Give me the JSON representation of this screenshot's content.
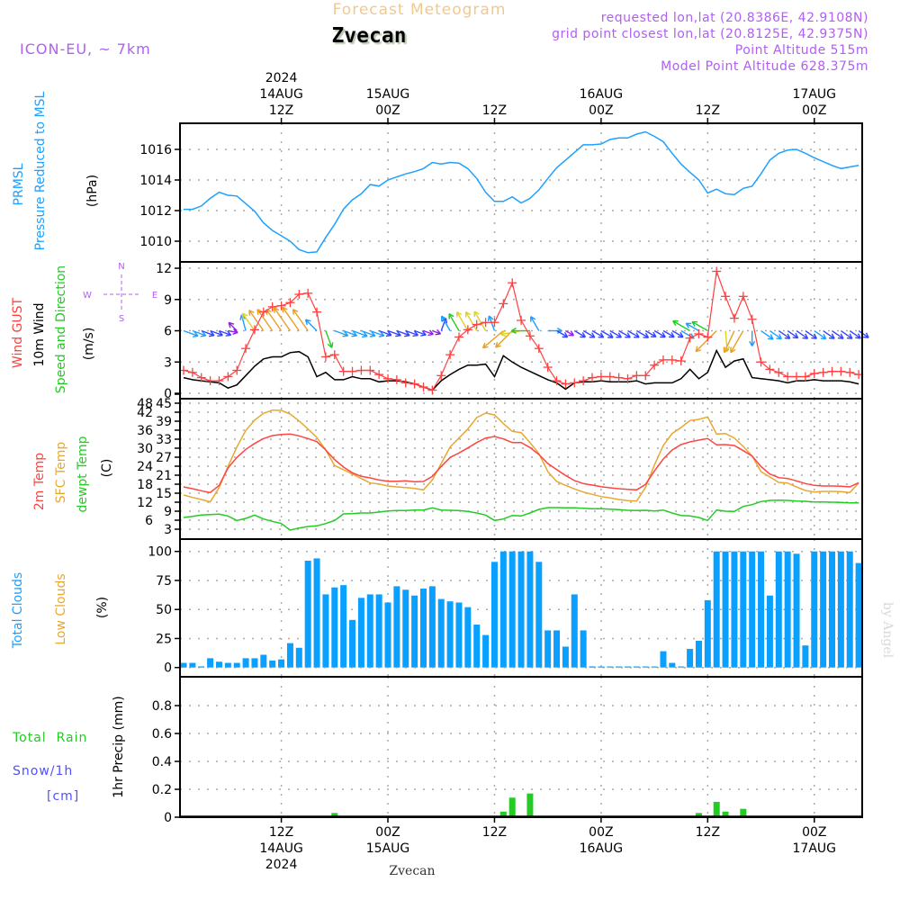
{
  "header": {
    "title": "Forecast Meteogram",
    "location": "Zvecan",
    "model": "ICON-EU, ~ 7km",
    "requested": "requested lon,lat (20.8386E, 42.9108N)",
    "grid_point": "grid point closest lon,lat (20.8125E, 42.9375N)",
    "point_altitude": "Point Altitude 515m",
    "model_altitude": "Model Point Altitude 628.375m",
    "footer_location": "Zvecan",
    "watermark": "by Angel"
  },
  "labels": {
    "prmsl": "PRMSL",
    "pressure": "Pressure Reduced to MSL",
    "hpa": "(hPa)",
    "wind_gust": "Wind GUST",
    "wind_10m": "10m Wind",
    "speed_dir": "Speed and Direction",
    "ms": "(m/s)",
    "compass_n": "N",
    "compass_s": "S",
    "compass_w": "W",
    "compass_e": "E",
    "t2m": "2m Temp",
    "sfc": "SFC Temp",
    "dewpt": "dewpt Temp",
    "c": "(C)",
    "total_clouds": "Total Clouds",
    "low_clouds": "Low Clouds",
    "pct": "(%)",
    "precip": "1hr Precip (mm)",
    "total_rain": "Total  Rain",
    "snow": "Snow/1h",
    "cm": "[cm]"
  },
  "colors": {
    "pressure": "#1ea0ff",
    "gust": "#ff4040",
    "wind10m": "#000000",
    "t2m": "#ff4444",
    "sfc": "#e8a830",
    "dewpt": "#22cc22",
    "clouds": "#0aa0ff",
    "low_clouds": "#e8a830",
    "precip": "#22cc22",
    "header_purple": "#b060f0",
    "title": "#f0c890"
  },
  "chart_data": {
    "type": "line",
    "x_start": "14AUG2024 01Z",
    "step_hours": 1,
    "time_ticks_top": [
      {
        "index": 11,
        "lines": [
          "2024",
          "14AUG",
          "12Z"
        ]
      },
      {
        "index": 23,
        "lines": [
          "15AUG",
          "00Z"
        ]
      },
      {
        "index": 35,
        "lines": [
          "12Z"
        ]
      },
      {
        "index": 47,
        "lines": [
          "16AUG",
          "00Z"
        ]
      },
      {
        "index": 59,
        "lines": [
          "12Z"
        ]
      },
      {
        "index": 71,
        "lines": [
          "17AUG",
          "00Z"
        ]
      }
    ],
    "time_ticks_bottom": [
      {
        "index": 11,
        "lines": [
          "12Z",
          "14AUG",
          "2024"
        ]
      },
      {
        "index": 23,
        "lines": [
          "00Z",
          "15AUG"
        ]
      },
      {
        "index": 35,
        "lines": [
          "12Z"
        ]
      },
      {
        "index": 47,
        "lines": [
          "00Z",
          "16AUG"
        ]
      },
      {
        "index": 59,
        "lines": [
          "12Z"
        ]
      },
      {
        "index": 71,
        "lines": [
          "00Z",
          "17AUG"
        ]
      }
    ],
    "panels": {
      "pressure": {
        "ylabel": "hPa",
        "ylim": [
          1008.65,
          1017.7
        ],
        "yticks": [
          1010,
          1012,
          1014,
          1016
        ],
        "values": [
          1012.08,
          1012.08,
          1012.3,
          1012.8,
          1013.2,
          1013.0,
          1012.95,
          1012.45,
          1011.95,
          1011.2,
          1010.7,
          1010.35,
          1010.0,
          1009.45,
          1009.25,
          1009.3,
          1010.25,
          1011.1,
          1012.1,
          1012.7,
          1013.1,
          1013.7,
          1013.6,
          1014.0,
          1014.2,
          1014.4,
          1014.55,
          1014.75,
          1015.15,
          1015.05,
          1015.15,
          1015.1,
          1014.75,
          1014.1,
          1013.2,
          1012.6,
          1012.6,
          1012.9,
          1012.5,
          1012.8,
          1013.35,
          1014.1,
          1014.8,
          1015.3,
          1015.8,
          1016.3,
          1016.3,
          1016.35,
          1016.65,
          1016.75,
          1016.75,
          1017.0,
          1017.15,
          1016.85,
          1016.5,
          1015.75,
          1015.05,
          1014.5,
          1014.0,
          1013.15,
          1013.4,
          1013.1,
          1013.05,
          1013.45,
          1013.6,
          1014.4,
          1015.3,
          1015.75,
          1015.95,
          1016.0,
          1015.75,
          1015.45,
          1015.2,
          1014.95,
          1014.75,
          1014.85,
          1014.95
        ]
      },
      "wind": {
        "ylabel": "m/s",
        "ylim": [
          -0.5,
          12.6
        ],
        "yticks": [
          0,
          3,
          6,
          9,
          12
        ],
        "arrow_level": 6,
        "gust": [
          2.2,
          2.0,
          1.5,
          1.2,
          1.2,
          1.6,
          2.2,
          4.3,
          6.1,
          7.8,
          8.3,
          8.4,
          8.7,
          9.5,
          9.6,
          7.8,
          3.5,
          3.7,
          2.1,
          2.1,
          2.2,
          2.2,
          1.8,
          1.4,
          1.3,
          1.0,
          0.9,
          0.6,
          0.3,
          1.7,
          3.7,
          5.4,
          6.1,
          6.6,
          6.8,
          6.8,
          8.6,
          10.6,
          7.0,
          5.5,
          4.3,
          2.5,
          1.2,
          0.9,
          1.0,
          1.2,
          1.5,
          1.6,
          1.6,
          1.5,
          1.4,
          1.7,
          1.7,
          2.7,
          3.2,
          3.2,
          3.1,
          5.3,
          5.7,
          5.4,
          11.7,
          9.3,
          7.2,
          9.3,
          7.1,
          3.0,
          2.3,
          2.0,
          1.6,
          1.6,
          1.6,
          1.9,
          2.0,
          2.1,
          2.1,
          2.0,
          1.8
        ],
        "wind10m": [
          1.5,
          1.3,
          1.2,
          1.1,
          1.0,
          0.5,
          0.8,
          1.7,
          2.6,
          3.3,
          3.5,
          3.5,
          3.9,
          4.0,
          3.5,
          1.6,
          2.0,
          1.3,
          1.3,
          1.6,
          1.4,
          1.4,
          1.1,
          1.2,
          1.2,
          1.1,
          0.9,
          0.6,
          0.3,
          1.2,
          1.8,
          2.3,
          2.7,
          2.7,
          2.8,
          1.6,
          3.6,
          3.0,
          2.5,
          2.1,
          1.7,
          1.3,
          1.0,
          0.4,
          1.0,
          1.1,
          1.1,
          1.2,
          1.1,
          1.1,
          1.1,
          1.2,
          0.9,
          1.0,
          1.0,
          1.0,
          1.4,
          2.3,
          1.4,
          2.0,
          4.1,
          2.5,
          3.1,
          3.3,
          1.5,
          1.4,
          1.3,
          1.2,
          1.0,
          1.2,
          1.2,
          1.3,
          1.2,
          1.2,
          1.2,
          1.1,
          0.9
        ],
        "direction_deg": [
          290,
          290,
          290,
          290,
          290,
          280,
          135,
          165,
          145,
          145,
          145,
          145,
          145,
          145,
          145,
          135,
          340,
          290,
          290,
          290,
          290,
          290,
          290,
          290,
          290,
          290,
          290,
          290,
          290,
          200,
          150,
          150,
          150,
          150,
          150,
          160,
          50,
          45,
          80,
          90,
          150,
          270,
          300,
          300,
          300,
          300,
          300,
          300,
          300,
          300,
          300,
          300,
          300,
          300,
          300,
          300,
          300,
          120,
          120,
          120,
          45,
          355,
          25,
          30,
          0,
          305,
          305,
          305,
          305,
          305,
          305,
          305,
          305,
          305,
          305,
          305,
          305
        ]
      },
      "temperature": {
        "ylabel": "C",
        "ylim": [
          -0.3,
          46.5
        ],
        "yticks": [
          3,
          6,
          9,
          12,
          15,
          18,
          21,
          24,
          27,
          30,
          33,
          36,
          39,
          42,
          45,
          48
        ],
        "t2m": [
          17.1,
          16.5,
          15.8,
          15.2,
          17.6,
          23.4,
          26.9,
          29.6,
          31.6,
          33.2,
          34.2,
          34.6,
          34.7,
          34.1,
          33.2,
          32.2,
          29.4,
          26.2,
          23.7,
          21.8,
          20.6,
          20.1,
          19.4,
          19.0,
          19.0,
          19.1,
          18.8,
          18.9,
          20.6,
          23.9,
          26.9,
          28.4,
          30.1,
          31.9,
          33.4,
          33.9,
          33.1,
          31.9,
          31.9,
          30.2,
          27.9,
          24.9,
          22.9,
          20.9,
          19.2,
          18.2,
          17.7,
          17.2,
          16.8,
          16.5,
          16.3,
          16.1,
          17.9,
          22.4,
          26.4,
          29.4,
          31.2,
          32.1,
          32.7,
          33.2,
          31.1,
          31.2,
          30.9,
          29.2,
          27.4,
          23.9,
          21.4,
          20.2,
          19.9,
          19.1,
          18.2,
          17.6,
          17.4,
          17.4,
          17.3,
          17.1,
          18.5
        ],
        "sfc": [
          14.4,
          13.6,
          12.9,
          12.1,
          16.9,
          23.9,
          30.4,
          35.9,
          39.4,
          41.6,
          42.7,
          42.6,
          41.4,
          39.1,
          36.4,
          33.6,
          29.4,
          24.2,
          22.8,
          21.4,
          19.9,
          18.4,
          18.1,
          17.4,
          17.1,
          16.9,
          16.6,
          16.1,
          19.4,
          24.9,
          30.4,
          33.4,
          36.4,
          40.2,
          41.7,
          41.1,
          38.2,
          35.6,
          35.2,
          31.9,
          28.2,
          22.2,
          18.9,
          17.6,
          16.4,
          15.4,
          14.6,
          13.9,
          13.4,
          12.9,
          12.5,
          12.4,
          16.9,
          24.4,
          30.9,
          34.9,
          36.9,
          39.2,
          39.6,
          40.4,
          34.7,
          34.9,
          33.4,
          30.6,
          27.4,
          22.2,
          20.4,
          18.6,
          18.4,
          17.1,
          15.9,
          15.4,
          15.6,
          15.6,
          15.5,
          15.2,
          18.4
        ],
        "dewpt": [
          6.9,
          7.3,
          7.7,
          7.9,
          8.0,
          7.4,
          5.9,
          6.6,
          7.7,
          6.4,
          5.6,
          4.9,
          2.7,
          3.4,
          3.9,
          4.1,
          4.9,
          5.9,
          8.1,
          8.2,
          8.4,
          8.4,
          8.7,
          9.1,
          9.2,
          9.2,
          9.4,
          9.4,
          10.1,
          9.4,
          9.3,
          9.2,
          8.9,
          8.4,
          7.7,
          5.9,
          6.4,
          7.6,
          7.4,
          8.4,
          9.6,
          10.2,
          10.2,
          10.1,
          10.1,
          10.0,
          9.8,
          9.8,
          9.7,
          9.5,
          9.3,
          9.2,
          9.3,
          9.1,
          9.4,
          8.4,
          7.6,
          7.4,
          6.9,
          5.9,
          9.4,
          9.0,
          8.9,
          10.6,
          11.2,
          12.2,
          12.6,
          12.7,
          12.6,
          12.4,
          12.3,
          12.1,
          12.1,
          12.0,
          11.9,
          11.8,
          11.8
        ]
      },
      "clouds": {
        "type": "bar",
        "ylabel": "%",
        "ylim": [
          -8,
          110
        ],
        "yticks": [
          0,
          25,
          50,
          75,
          100
        ],
        "total": [
          4,
          4,
          1,
          8,
          5,
          4,
          4,
          8,
          8,
          11,
          6,
          7,
          21,
          17,
          92,
          94,
          63,
          69,
          71,
          41,
          60,
          63,
          63,
          56,
          70,
          67,
          62,
          68,
          70,
          59,
          57,
          56,
          52,
          37,
          28,
          91,
          100,
          100,
          100,
          100,
          91,
          32,
          32,
          18,
          63,
          32,
          1,
          0,
          0,
          0,
          0,
          0,
          0,
          0,
          14,
          4,
          0.5,
          16,
          23,
          58,
          100,
          100,
          100,
          100,
          100,
          100,
          62,
          100,
          100,
          98,
          19,
          100,
          100,
          100,
          100,
          100,
          90
        ],
        "low": [
          0,
          0,
          0,
          0,
          0,
          0,
          0,
          0,
          0,
          0,
          0,
          0,
          0,
          0,
          0,
          0,
          0,
          0,
          0,
          0,
          0,
          0,
          0,
          0,
          0,
          0,
          0,
          0,
          0,
          0,
          0,
          0,
          0,
          0,
          0,
          0,
          0,
          0,
          0,
          0,
          0,
          0,
          0,
          0,
          0,
          0,
          0,
          0,
          0,
          0,
          0,
          0,
          0,
          0,
          0,
          0,
          0,
          0,
          0,
          0,
          0,
          0,
          0,
          0,
          0,
          0,
          0,
          0,
          0,
          0,
          0,
          0,
          0,
          0,
          0,
          0,
          0
        ]
      },
      "precip": {
        "type": "bar",
        "ylabel": "mm",
        "ylim": [
          0,
          1.0
        ],
        "yticks": [
          0,
          0.2,
          0.4,
          0.6,
          0.8
        ],
        "rain": [
          0,
          0,
          0,
          0,
          0,
          0,
          0,
          0,
          0,
          0,
          0,
          0,
          0,
          0,
          0,
          0,
          0,
          0.03,
          0,
          0,
          0,
          0,
          0,
          0,
          0,
          0,
          0,
          0,
          0,
          0,
          0,
          0,
          0,
          0,
          0,
          0.005,
          0.04,
          0.14,
          0,
          0.17,
          0,
          0,
          0,
          0,
          0,
          0,
          0,
          0,
          0,
          0,
          0,
          0,
          0,
          0,
          0,
          0,
          0,
          0,
          0.03,
          0,
          0.11,
          0.04,
          0,
          0.06,
          0,
          0,
          0,
          0,
          0,
          0,
          0,
          0,
          0,
          0,
          0,
          0,
          0
        ]
      }
    }
  }
}
